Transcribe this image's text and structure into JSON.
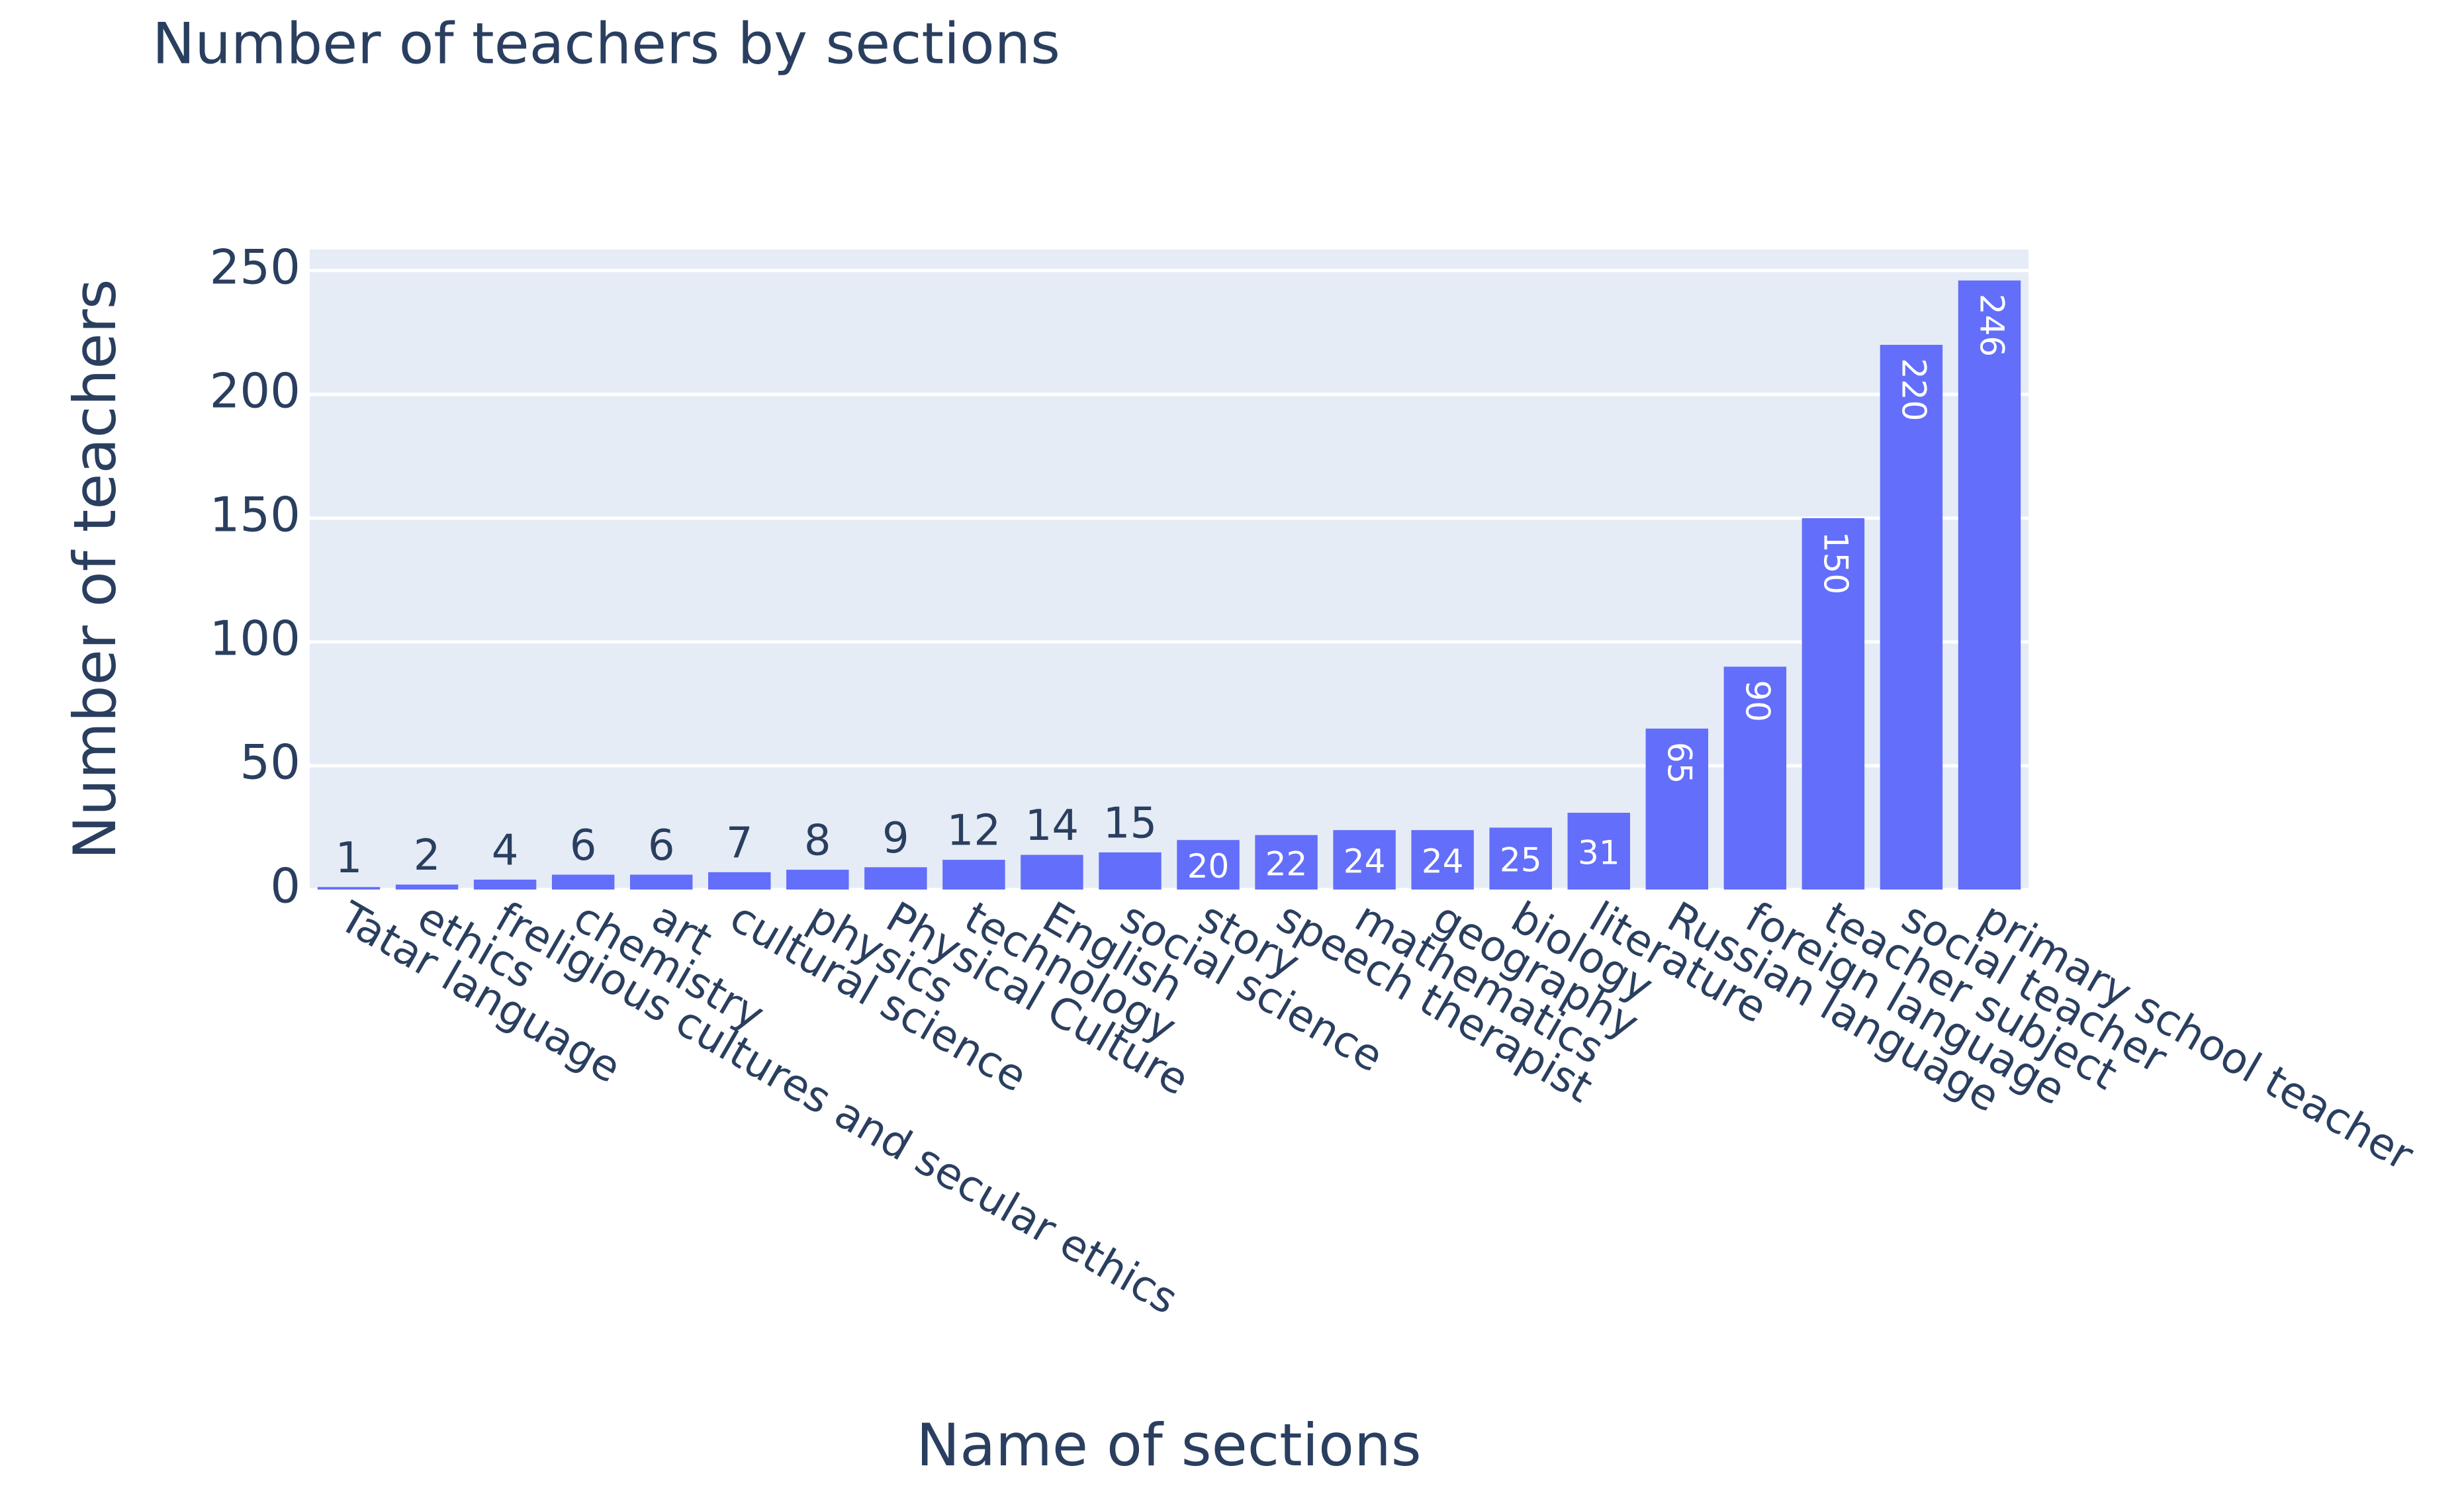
{
  "chart_data": {
    "type": "bar",
    "title": "Number of teachers by sections",
    "x_label": "Name of sections",
    "y_label": "Number of teachers",
    "categories": [
      "Tatar language",
      "ethics",
      "freligious cultures and secular ethics",
      "chemistry",
      "art",
      "cultural science",
      "physics",
      "Physical Culture",
      "technology",
      "English",
      "social science",
      "story",
      "speech therapist",
      "mathematics",
      "geography",
      "biology",
      "literature",
      "Russian language",
      "foreign language",
      "teacher subject",
      "social teacher",
      "primary school teacher"
    ],
    "values": [
      1,
      2,
      4,
      6,
      6,
      7,
      8,
      9,
      12,
      14,
      15,
      20,
      22,
      24,
      24,
      25,
      31,
      65,
      90,
      150,
      220,
      246
    ],
    "color": "#636efa",
    "ylim": [
      0,
      258.5
    ],
    "yticks": [
      0,
      50,
      100,
      150,
      200,
      250
    ],
    "grid": true
  }
}
